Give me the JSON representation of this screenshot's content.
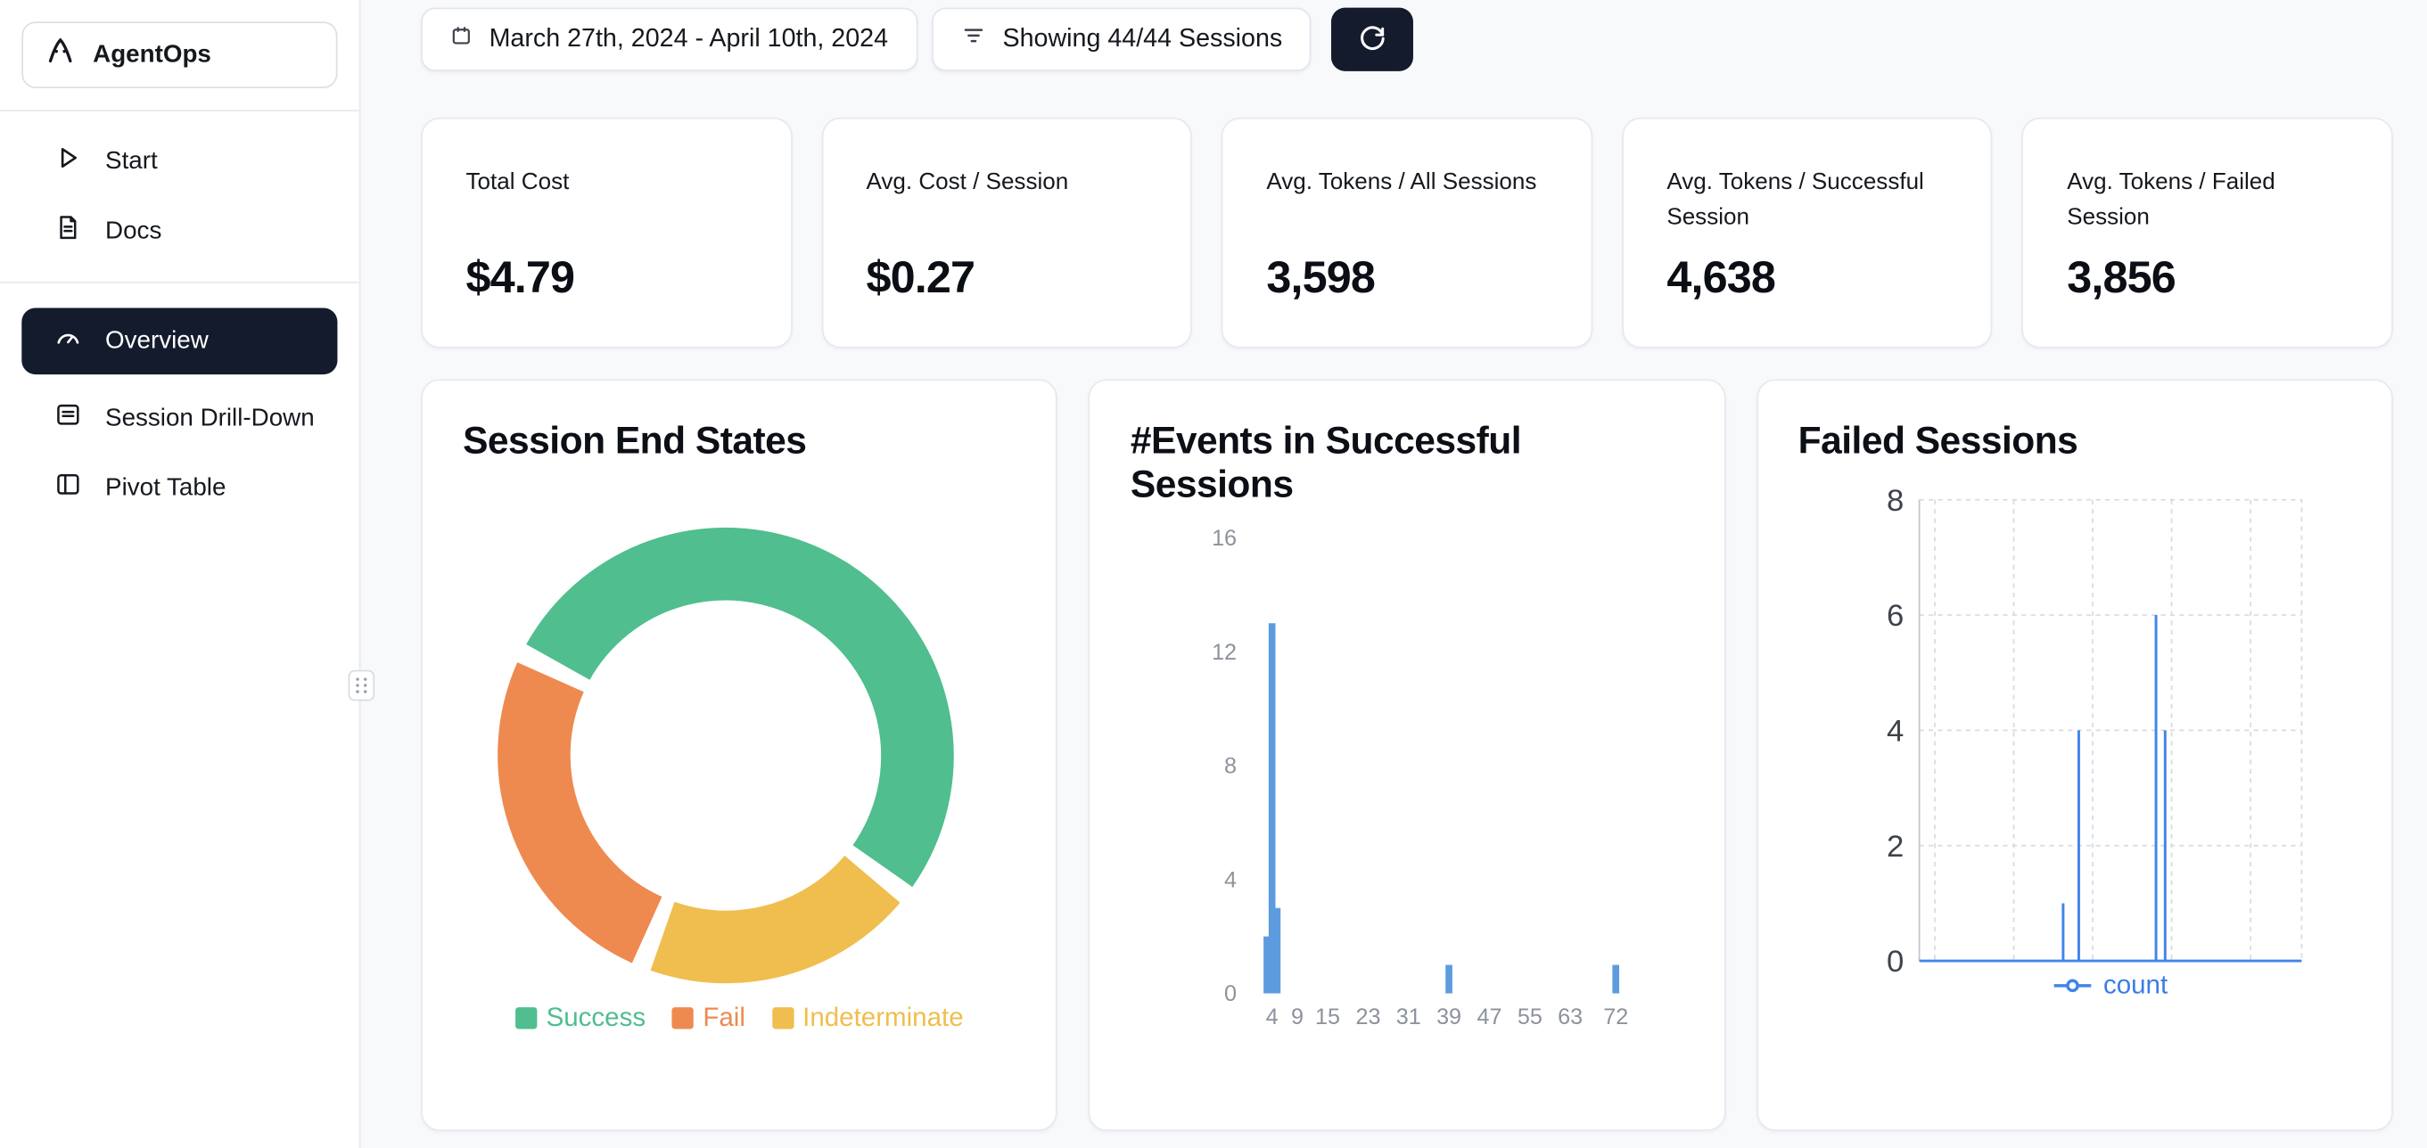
{
  "sidebar": {
    "brand": "AgentOps",
    "items_top": [
      {
        "label": "Start"
      },
      {
        "label": "Docs"
      }
    ],
    "items_main": [
      {
        "label": "Overview",
        "active": true
      },
      {
        "label": "Session Drill-Down",
        "active": false
      },
      {
        "label": "Pivot Table",
        "active": false
      }
    ]
  },
  "toolbar": {
    "date_range": "March 27th, 2024 - April 10th, 2024",
    "sessions_filter": "Showing 44/44 Sessions"
  },
  "stats": [
    {
      "label": "Total Cost",
      "value": "$4.79"
    },
    {
      "label": "Avg. Cost / Session",
      "value": "$0.27"
    },
    {
      "label": "Avg. Tokens / All Sessions",
      "value": "3,598"
    },
    {
      "label": "Avg. Tokens / Successful Session",
      "value": "4,638"
    },
    {
      "label": "Avg. Tokens / Failed Session",
      "value": "3,856"
    }
  ],
  "chart_data": [
    {
      "id": "session-end-states",
      "type": "pie",
      "donut": true,
      "title": "Session End States",
      "segments": [
        {
          "label": "Success",
          "pct": 54,
          "color": "#50BE8E"
        },
        {
          "label": "Indeterminate",
          "pct": 20,
          "color": "#EFBE4E"
        },
        {
          "label": "Fail",
          "pct": 26,
          "color": "#EE8A50"
        }
      ],
      "legend_order": [
        "Success",
        "Fail",
        "Indeterminate"
      ],
      "start_angle_deg": 299,
      "gap_deg": 5
    },
    {
      "id": "events-in-successful-sessions",
      "type": "bar",
      "title": "#Events in Successful Sessions",
      "bars": [
        {
          "x": 3,
          "count": 2
        },
        {
          "x": 4,
          "count": 13
        },
        {
          "x": 5,
          "count": 3
        },
        {
          "x": 39,
          "count": 1
        },
        {
          "x": 72,
          "count": 1
        }
      ],
      "xticks": [
        4,
        9,
        15,
        23,
        31,
        39,
        47,
        55,
        63,
        72
      ],
      "yticks": [
        0,
        4,
        8,
        12,
        16
      ],
      "xrange": [
        1,
        76
      ],
      "ylim": [
        0,
        16
      ],
      "bar_color": "#5C9CDE"
    },
    {
      "id": "failed-sessions",
      "type": "line",
      "title": "Failed Sessions",
      "legend": "count",
      "yticks": [
        0,
        2,
        4,
        6,
        8
      ],
      "ylim": [
        0,
        8
      ],
      "spikes": [
        {
          "x_frac": 0.376,
          "count": 1
        },
        {
          "x_frac": 0.417,
          "count": 4
        },
        {
          "x_frac": 0.619,
          "count": 6
        },
        {
          "x_frac": 0.643,
          "count": 4
        }
      ],
      "line_color": "#4285E8",
      "legend_color": "#3D7BE8",
      "grid": "dashed"
    }
  ],
  "colors": {
    "navy": "#141B2D",
    "card_border": "#E7E9EF",
    "bg": "#F8F9FB",
    "tick_gray": "#8D929B",
    "tick_dark": "#3E434B"
  }
}
